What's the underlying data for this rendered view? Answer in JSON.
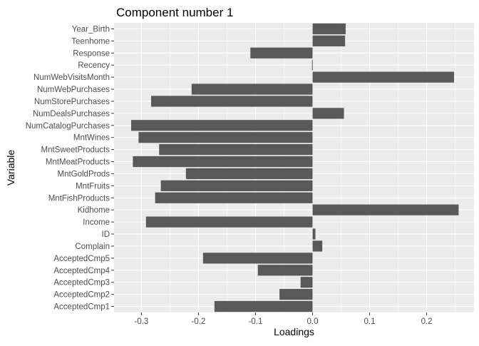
{
  "chart_data": {
    "type": "bar",
    "orientation": "horizontal",
    "title": "Component number  1",
    "xlabel": "Loadings",
    "ylabel": "Variable",
    "xlim": [
      -0.348,
      0.283
    ],
    "x_ticks": [
      -0.3,
      -0.2,
      -0.1,
      0.0,
      0.1,
      0.2
    ],
    "x_tick_labels": [
      "-0.3",
      "-0.2",
      "-0.1",
      "0.0",
      "0.1",
      "0.2"
    ],
    "grid": true,
    "background_color": "#ebebeb",
    "bar_color": "#595959",
    "categories": [
      "Year_Birth",
      "Teenhome",
      "Response",
      "Recency",
      "NumWebVisitsMonth",
      "NumWebPurchases",
      "NumStorePurchases",
      "NumDealsPurchases",
      "NumCatalogPurchases",
      "MntWines",
      "MntSweetProducts",
      "MntMeatProducts",
      "MntGoldProds",
      "MntFruits",
      "MntFishProducts",
      "Kidhome",
      "Income",
      "ID",
      "Complain",
      "AcceptedCmp5",
      "AcceptedCmp4",
      "AcceptedCmp3",
      "AcceptedCmp2",
      "AcceptedCmp1"
    ],
    "values": [
      0.058,
      0.057,
      -0.109,
      -0.001,
      0.248,
      -0.212,
      -0.283,
      0.055,
      -0.318,
      -0.305,
      -0.269,
      -0.315,
      -0.222,
      -0.266,
      -0.276,
      0.256,
      -0.292,
      0.005,
      0.017,
      -0.192,
      -0.096,
      -0.021,
      -0.058,
      -0.172
    ]
  }
}
